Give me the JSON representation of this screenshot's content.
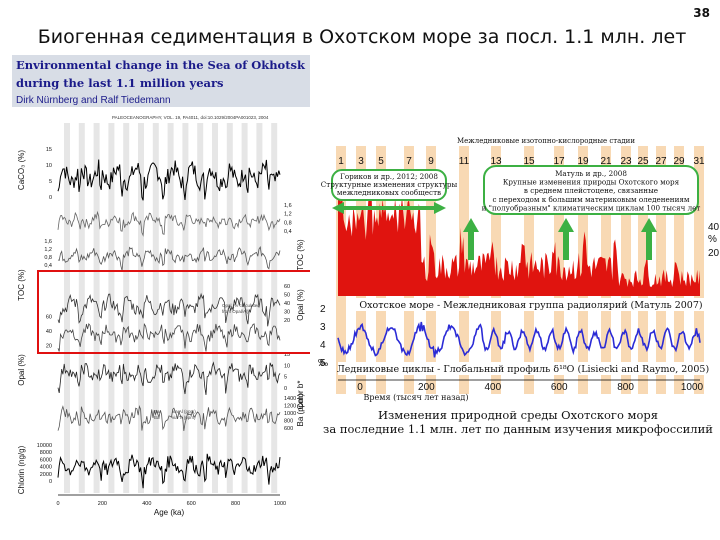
{
  "page_number": "38",
  "slide_title": "Биогенная седиментация в Охотском море за посл. 1.1 млн. лет",
  "left_figure": {
    "header_line1": "Environmental change in the Sea of Okhotsk",
    "header_line2": "during the last 1.1 million years",
    "authors": "Dirk Nürnberg and Ralf Tiedemann",
    "journal_ref": "PALEOCEANOGRAPHY, VOL. 19, PA4011, doi:10.1029/2004PA001023, 2004",
    "panels": [
      {
        "label": "CaCO₃ (%)",
        "side": "left",
        "ticks": [
          "15",
          "10",
          "5",
          "0"
        ]
      },
      {
        "label": "TOC (%)",
        "side": "right",
        "ticks": [
          "1,6",
          "1,2",
          "0,8",
          "0,4"
        ]
      },
      {
        "label": "TOC (%)",
        "side": "left",
        "ticks": [
          "1,6",
          "1,2",
          "0,8",
          "0,4"
        ]
      },
      {
        "label": "Opal (%)",
        "side": "right",
        "ticks": [
          "60",
          "50",
          "40",
          "30",
          "20"
        ]
      },
      {
        "label": "Opal (%)",
        "side": "left",
        "ticks": [
          "60",
          "40",
          "20"
        ]
      },
      {
        "label": "Color b*",
        "side": "right",
        "ticks": [
          "15",
          "10",
          "5",
          "0"
        ]
      },
      {
        "label": "Ba (ppm)",
        "side": "right",
        "ticks": [
          "1400",
          "1200",
          "1000",
          "800",
          "600"
        ]
      },
      {
        "label": "Chlorin (ng/g)",
        "side": "left",
        "ticks": [
          "10000",
          "8000",
          "6000",
          "4000",
          "2000",
          "0"
        ]
      }
    ],
    "opal_legend": [
      "Opal (% calculated",
      "from Opal/Al)"
    ],
    "ba_legend": [
      "Ba",
      "Ba",
      "via Al (ppm)",
      "via Ti (ppm)"
    ],
    "x_ticks": [
      "0",
      "200",
      "400",
      "600",
      "800",
      "1000"
    ],
    "x_label": "Age (ka)"
  },
  "right_figure": {
    "top_header": "Межледниковые изотопно-кислородные стадии",
    "stage_numbers": [
      "1",
      "3",
      "5",
      "7",
      "9",
      "11",
      "13",
      "15",
      "17",
      "19",
      "21",
      "23",
      "25",
      "27",
      "29",
      "31"
    ],
    "left_box": [
      "Гориков и др., 2012; 2008",
      "Структурные изменения структуры",
      "межледниковых сообществ"
    ],
    "right_box": [
      "Матуль и др., 2008",
      "Крупные изменения природы Охотского моря",
      "в среднем плейстоцене, связанные",
      "с переходом к большим материковым оледенениям",
      "и \"полуобразным\" климатическим циклам 100 тысяч лет"
    ],
    "radiolaria_caption": "Охотское море - Межледниковая группа радиолярий (Матуль 2007)",
    "radiolaria_axis": [
      "40",
      "20",
      "%"
    ],
    "isotope_caption": "Ледниковые циклы - Глобальный профиль δ¹⁸O (Lisiecki and Raymo, 2005)",
    "isotope_axis": [
      "2",
      "3",
      "4",
      "5",
      "‰"
    ],
    "x_ticks": [
      "0",
      "200",
      "400",
      "600",
      "800",
      "1000"
    ],
    "x_label": "Время (тысяч лет назад)",
    "bottom_caption": [
      "Изменения природной среды Охотского моря",
      "за последние 1.1 млн. лет по данным изучения микрофоссилий"
    ]
  },
  "colors": {
    "radiolaria": "#e0140f",
    "isotope": "#2b2bd6",
    "band": "#f8d9b4",
    "box_border": "#3cb043",
    "arrow": "#3cb043",
    "highlight": "#e01010"
  }
}
